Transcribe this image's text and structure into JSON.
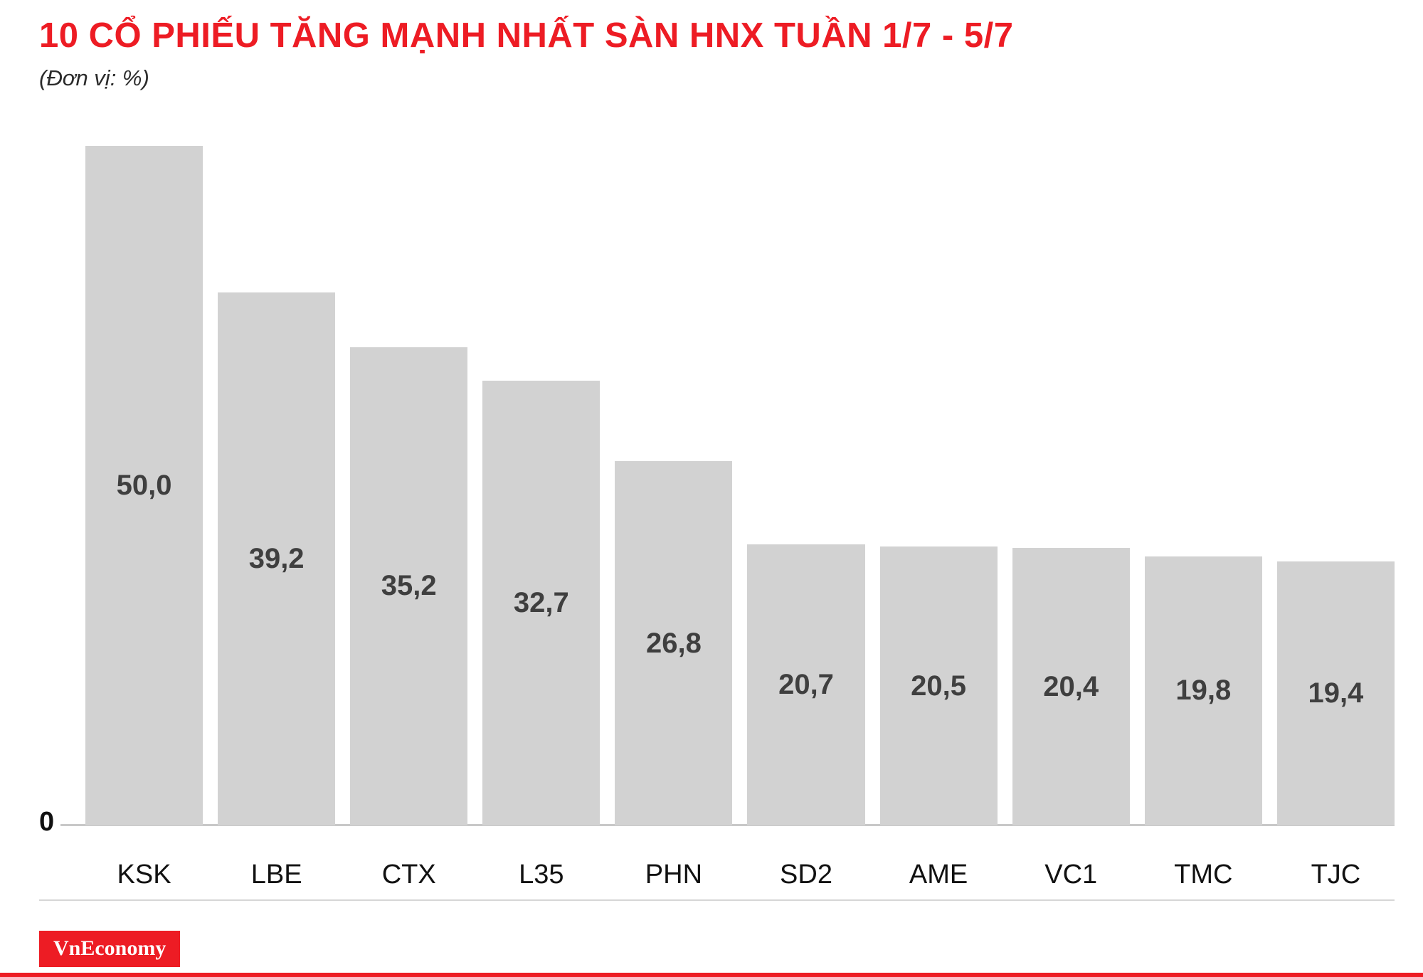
{
  "header": {
    "title": "10 CỔ PHIẾU TĂNG MẠNH NHẤT SÀN HNX TUẦN 1/7 - 5/7",
    "subtitle": "(Đơn vị: %)"
  },
  "chart_data": {
    "type": "bar",
    "categories": [
      "KSK",
      "LBE",
      "CTX",
      "L35",
      "PHN",
      "SD2",
      "AME",
      "VC1",
      "TMC",
      "TJC"
    ],
    "values": [
      50.0,
      39.2,
      35.2,
      32.7,
      26.8,
      20.7,
      20.5,
      20.4,
      19.8,
      19.4
    ],
    "value_labels": [
      "50,0",
      "39,2",
      "35,2",
      "32,7",
      "26,8",
      "20,7",
      "20,5",
      "20,4",
      "19,8",
      "19,4"
    ],
    "title": "10 CỔ PHIẾU TĂNG MẠNH NHẤT SÀN HNX TUẦN 1/7 - 5/7",
    "xlabel": "",
    "ylabel": "%",
    "ylim": [
      0,
      50
    ],
    "zero_label": "0",
    "grid": false,
    "legend": false,
    "value_label_position": "center-inside-bar"
  },
  "footer": {
    "brand": "VnEconomy"
  },
  "colors": {
    "title": "#ed1c24",
    "accent": "#ed1c24",
    "bar": "#d2d2d2",
    "value_label": "#3f3f3f",
    "category_label": "#111111",
    "badge_background": "#ed1c24",
    "badge_text": "#ffffff"
  }
}
